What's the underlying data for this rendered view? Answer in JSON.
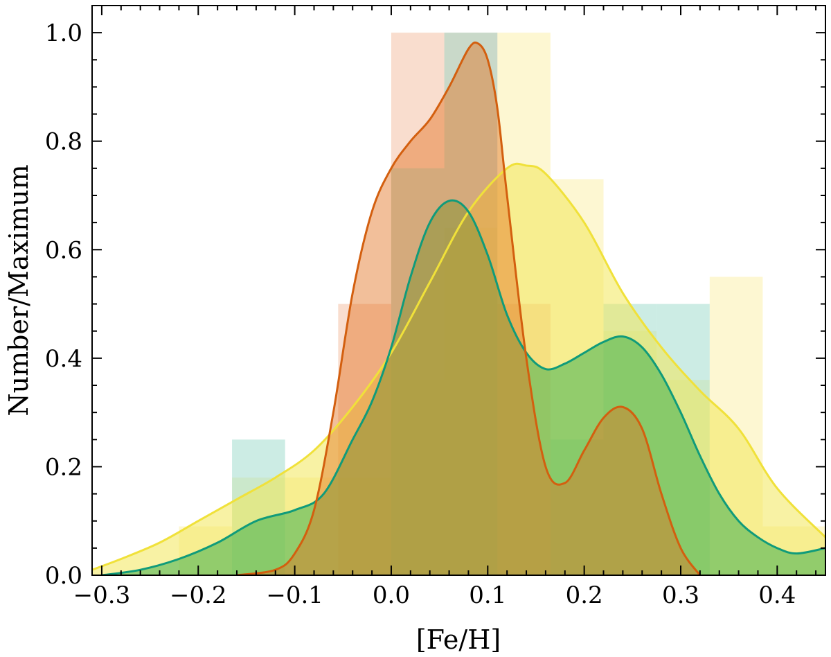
{
  "chart_data": {
    "type": "area",
    "title": "",
    "xlabel": "[Fe/H]",
    "ylabel": "Number/Maximum",
    "xlim": [
      -0.31,
      0.45
    ],
    "ylim": [
      0.0,
      1.05
    ],
    "x_ticks": [
      "−0.3",
      "−0.2",
      "−0.1",
      "0.0",
      "0.1",
      "0.2",
      "0.3",
      "0.4"
    ],
    "y_ticks": [
      "0.0",
      "0.2",
      "0.4",
      "0.6",
      "0.8",
      "1.0"
    ],
    "grid": false,
    "legend": "none",
    "colors": {
      "orange_line": "#d35f0f",
      "orange_fill": "#e3701f",
      "green_line": "#109b7a",
      "green_fill": "#3fb14f",
      "yellow_line": "#f0e13a",
      "yellow_fill": "#f3e859",
      "orange_hist": "#ee9e73",
      "green_hist": "#8dd4c4",
      "yellow_hist": "#fbf0a6"
    },
    "series": [
      {
        "values_key": "orange",
        "hist_edges": [
          -0.055,
          0.0,
          0.055,
          0.11,
          0.165
        ],
        "hist_values": [
          0.5,
          1.0,
          1.0,
          0.5
        ],
        "kde_x": [
          -0.16,
          -0.12,
          -0.1,
          -0.08,
          -0.06,
          -0.04,
          -0.02,
          0.0,
          0.02,
          0.04,
          0.06,
          0.08,
          0.09,
          0.1,
          0.11,
          0.12,
          0.14,
          0.16,
          0.18,
          0.2,
          0.22,
          0.24,
          0.26,
          0.28,
          0.3,
          0.32
        ],
        "kde_y": [
          0.0,
          0.01,
          0.04,
          0.12,
          0.3,
          0.52,
          0.67,
          0.75,
          0.8,
          0.84,
          0.9,
          0.97,
          0.98,
          0.95,
          0.86,
          0.7,
          0.4,
          0.2,
          0.17,
          0.23,
          0.29,
          0.31,
          0.27,
          0.15,
          0.05,
          0.0
        ]
      },
      {
        "values_key": "green",
        "hist_edges": [
          -0.165,
          -0.11,
          -0.055,
          0.0,
          0.055,
          0.11,
          0.165,
          0.22,
          0.275,
          0.33
        ],
        "hist_values": [
          0.25,
          0.0,
          0.0,
          0.75,
          1.0,
          0.0,
          0.25,
          0.5,
          0.5
        ],
        "kde_x": [
          -0.3,
          -0.26,
          -0.22,
          -0.18,
          -0.14,
          -0.1,
          -0.07,
          -0.04,
          -0.02,
          0.0,
          0.02,
          0.04,
          0.06,
          0.08,
          0.1,
          0.12,
          0.14,
          0.16,
          0.18,
          0.2,
          0.22,
          0.24,
          0.26,
          0.28,
          0.3,
          0.32,
          0.34,
          0.36,
          0.38,
          0.4,
          0.42,
          0.45
        ],
        "kde_y": [
          0.0,
          0.01,
          0.03,
          0.06,
          0.1,
          0.12,
          0.15,
          0.25,
          0.32,
          0.42,
          0.55,
          0.65,
          0.69,
          0.67,
          0.59,
          0.48,
          0.41,
          0.38,
          0.39,
          0.41,
          0.43,
          0.44,
          0.42,
          0.37,
          0.3,
          0.22,
          0.15,
          0.1,
          0.07,
          0.05,
          0.04,
          0.05
        ]
      },
      {
        "values_key": "yellow",
        "hist_edges": [
          -0.22,
          -0.165,
          -0.11,
          -0.055,
          0.0,
          0.055,
          0.11,
          0.165,
          0.22,
          0.275,
          0.33,
          0.385,
          0.45
        ],
        "hist_values": [
          0.09,
          0.18,
          0.18,
          0.18,
          0.36,
          0.64,
          1.0,
          0.73,
          0.45,
          0.36,
          0.55,
          0.09
        ],
        "kde_x": [
          -0.31,
          -0.28,
          -0.24,
          -0.2,
          -0.16,
          -0.12,
          -0.08,
          -0.04,
          0.0,
          0.04,
          0.08,
          0.12,
          0.14,
          0.16,
          0.2,
          0.24,
          0.28,
          0.32,
          0.36,
          0.4,
          0.45
        ],
        "kde_y": [
          0.01,
          0.03,
          0.06,
          0.1,
          0.14,
          0.18,
          0.23,
          0.31,
          0.41,
          0.54,
          0.67,
          0.75,
          0.755,
          0.74,
          0.65,
          0.52,
          0.42,
          0.34,
          0.27,
          0.16,
          0.07
        ]
      }
    ]
  }
}
